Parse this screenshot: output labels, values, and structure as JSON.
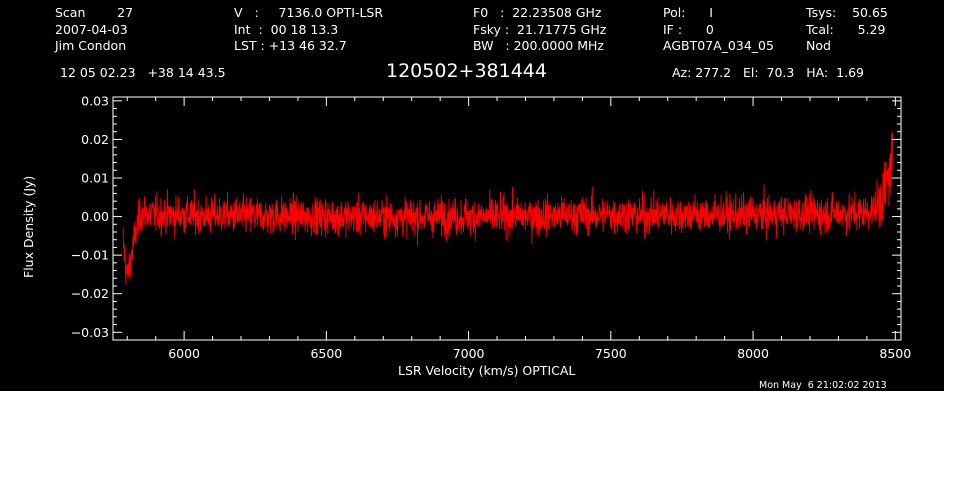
{
  "header": {
    "col1": [
      "Scan        27",
      "2007-04-03",
      "Jim Condon"
    ],
    "col2": [
      "V   :     7136.0 OPTI-LSR",
      "Int  :  00 18 13.3",
      "LST : +13 46 32.7"
    ],
    "col3": [
      "F0   :  22.23508 GHz",
      "Fsky :  21.71775 GHz",
      "BW   : 200.0000 MHz"
    ],
    "col4": [
      "Pol:      I",
      "IF :      0",
      "AGBT07A_034_05"
    ],
    "col5": [
      "Tsys:    50.65",
      "Tcal:      5.29",
      "Nod"
    ],
    "coords": "12 05 02.23   +38 14 43.5",
    "source": "120502+381444",
    "azel": "Az: 277.2   El:  70.3   HA:  1.69",
    "date": "Mon May  6 21:02:02 2013"
  },
  "chart_data": {
    "type": "line",
    "title": "120502+381444",
    "xlabel": "LSR Velocity (km/s) OPTICAL",
    "ylabel": "Flux Density (Jy)",
    "xlim": [
      5750,
      8520
    ],
    "ylim": [
      -0.032,
      0.031
    ],
    "xticks": [
      6000,
      6500,
      7000,
      7500,
      8000,
      8500
    ],
    "xtick_labels": [
      "6000",
      "6500",
      "7000",
      "7500",
      "8000",
      "8500"
    ],
    "yticks": [
      0.03,
      0.02,
      0.01,
      0.0,
      -0.01,
      -0.02,
      -0.03
    ],
    "ytick_labels": [
      "0.03",
      "0.02",
      "0.01",
      "0.00",
      "−0.01",
      "−0.02",
      "−0.03"
    ],
    "grid": false,
    "series": [
      {
        "color": "#ff0000",
        "x_start": 5785,
        "x_end": 8490,
        "noise_sigma": 0.0055,
        "x": [
          5785,
          5800,
          5815,
          5830,
          5850,
          5900,
          6500,
          7000,
          7500,
          8000,
          8400,
          8440,
          8460,
          8480,
          8490
        ],
        "y": [
          -0.006,
          -0.016,
          -0.01,
          -0.004,
          0.001,
          0.0005,
          0.0,
          0.0,
          0.0005,
          0.0005,
          0.001,
          0.003,
          0.006,
          0.011,
          0.016
        ]
      }
    ]
  }
}
